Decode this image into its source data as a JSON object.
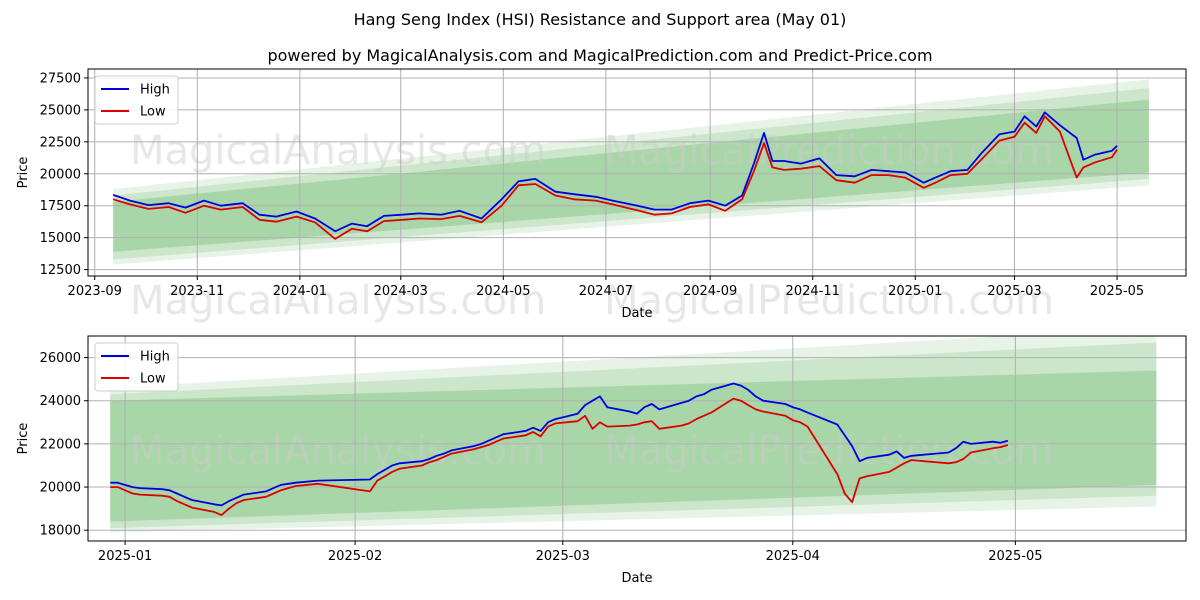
{
  "title": "Hang Seng Index (HSI) Resistance and Support area (May 01)",
  "subtitle": "powered by MagicalAnalysis.com and MagicalPrediction.com and Predict-Price.com",
  "watermarks": [
    "MagicalAnalysis.com",
    "MagicalPrediction.com"
  ],
  "colors": {
    "high": "#0000dd",
    "low": "#dd0000",
    "band": "#2e9e2e",
    "grid": "#b0b0b0"
  },
  "chart_data": [
    {
      "type": "line",
      "xlabel": "Date",
      "ylabel": "Price",
      "ylim": [
        12000,
        28200
      ],
      "xlim": [
        "2023-08-28",
        "2025-06-11"
      ],
      "yticks": [
        12500,
        15000,
        17500,
        20000,
        22500,
        25000,
        27500
      ],
      "ytick_labels": [
        "12500",
        "15000",
        "17500",
        "20000",
        "22500",
        "25000",
        "27500"
      ],
      "xticks": [
        "2023-09-01",
        "2023-11-01",
        "2024-01-01",
        "2024-03-01",
        "2024-05-01",
        "2024-07-01",
        "2024-09-01",
        "2024-11-01",
        "2025-01-01",
        "2025-03-01",
        "2025-05-01"
      ],
      "xtick_labels": [
        "2023-09",
        "2023-11",
        "2024-01",
        "2024-03",
        "2024-05",
        "2024-07",
        "2024-09",
        "2024-11",
        "2025-01",
        "2025-03",
        "2025-05"
      ],
      "grid": true,
      "legend": "upper-left",
      "bands": [
        {
          "x": [
            "2023-09-12",
            "2025-05-20"
          ],
          "upper": [
            18800,
            27400
          ],
          "lower": [
            12900,
            19100
          ]
        },
        {
          "x": [
            "2023-09-12",
            "2025-05-20"
          ],
          "upper": [
            18300,
            26700
          ],
          "lower": [
            13300,
            19600
          ]
        },
        {
          "x": [
            "2023-09-12",
            "2025-05-20"
          ],
          "upper": [
            17800,
            25800
          ],
          "lower": [
            13900,
            20100
          ]
        }
      ],
      "series": [
        {
          "name": "High",
          "x": [
            "2023-09-12",
            "2023-09-22",
            "2023-10-03",
            "2023-10-15",
            "2023-10-25",
            "2023-11-05",
            "2023-11-15",
            "2023-11-28",
            "2023-12-08",
            "2023-12-18",
            "2023-12-30",
            "2024-01-10",
            "2024-01-22",
            "2024-02-01",
            "2024-02-10",
            "2024-02-20",
            "2024-03-02",
            "2024-03-12",
            "2024-03-25",
            "2024-04-05",
            "2024-04-18",
            "2024-04-30",
            "2024-05-10",
            "2024-05-20",
            "2024-06-01",
            "2024-06-12",
            "2024-06-25",
            "2024-07-05",
            "2024-07-18",
            "2024-07-30",
            "2024-08-09",
            "2024-08-20",
            "2024-08-31",
            "2024-09-10",
            "2024-09-20",
            "2024-09-27",
            "2024-10-03",
            "2024-10-08",
            "2024-10-15",
            "2024-10-25",
            "2024-11-05",
            "2024-11-15",
            "2024-11-26",
            "2024-12-06",
            "2024-12-16",
            "2024-12-26",
            "2025-01-06",
            "2025-01-13",
            "2025-01-22",
            "2025-02-01",
            "2025-02-10",
            "2025-02-20",
            "2025-03-01",
            "2025-03-07",
            "2025-03-14",
            "2025-03-19",
            "2025-03-28",
            "2025-04-07",
            "2025-04-11",
            "2025-04-18",
            "2025-04-28",
            "2025-05-01"
          ],
          "values": [
            18350,
            17900,
            17550,
            17700,
            17350,
            17900,
            17500,
            17700,
            16800,
            16650,
            17050,
            16500,
            15500,
            16100,
            15900,
            16700,
            16800,
            16900,
            16800,
            17100,
            16500,
            18000,
            19400,
            19600,
            18600,
            18400,
            18200,
            17900,
            17550,
            17200,
            17200,
            17700,
            17900,
            17500,
            18300,
            20800,
            23200,
            21000,
            21000,
            20800,
            21200,
            19900,
            19800,
            20300,
            20200,
            20100,
            19300,
            19700,
            20200,
            20300,
            21700,
            23100,
            23300,
            24500,
            23700,
            24800,
            23800,
            22800,
            21100,
            21500,
            21800,
            22200
          ]
        },
        {
          "name": "Low",
          "x": [
            "2023-09-12",
            "2023-09-22",
            "2023-10-03",
            "2023-10-15",
            "2023-10-25",
            "2023-11-05",
            "2023-11-15",
            "2023-11-28",
            "2023-12-08",
            "2023-12-18",
            "2023-12-30",
            "2024-01-10",
            "2024-01-22",
            "2024-02-01",
            "2024-02-10",
            "2024-02-20",
            "2024-03-02",
            "2024-03-12",
            "2024-03-25",
            "2024-04-05",
            "2024-04-18",
            "2024-04-30",
            "2024-05-10",
            "2024-05-20",
            "2024-06-01",
            "2024-06-12",
            "2024-06-25",
            "2024-07-05",
            "2024-07-18",
            "2024-07-30",
            "2024-08-09",
            "2024-08-20",
            "2024-08-31",
            "2024-09-10",
            "2024-09-20",
            "2024-09-27",
            "2024-10-03",
            "2024-10-08",
            "2024-10-15",
            "2024-10-25",
            "2024-11-05",
            "2024-11-15",
            "2024-11-26",
            "2024-12-06",
            "2024-12-16",
            "2024-12-26",
            "2025-01-06",
            "2025-01-13",
            "2025-01-22",
            "2025-02-01",
            "2025-02-10",
            "2025-02-20",
            "2025-03-01",
            "2025-03-07",
            "2025-03-14",
            "2025-03-19",
            "2025-03-28",
            "2025-04-07",
            "2025-04-11",
            "2025-04-18",
            "2025-04-28",
            "2025-05-01"
          ],
          "values": [
            18000,
            17600,
            17250,
            17400,
            16950,
            17500,
            17200,
            17400,
            16400,
            16250,
            16650,
            16200,
            14900,
            15700,
            15500,
            16300,
            16400,
            16500,
            16450,
            16700,
            16200,
            17500,
            19100,
            19200,
            18300,
            18000,
            17900,
            17600,
            17200,
            16800,
            16900,
            17400,
            17600,
            17100,
            18000,
            20200,
            22400,
            20500,
            20300,
            20400,
            20600,
            19500,
            19300,
            19900,
            19900,
            19700,
            18900,
            19300,
            19900,
            20000,
            21200,
            22600,
            22900,
            24000,
            23200,
            24500,
            23300,
            19700,
            20500,
            20900,
            21300,
            21900
          ]
        }
      ]
    },
    {
      "type": "line",
      "xlabel": "Date",
      "ylabel": "Price",
      "ylim": [
        17500,
        27000
      ],
      "xlim": [
        "2024-12-27",
        "2025-05-24"
      ],
      "yticks": [
        18000,
        20000,
        22000,
        24000,
        26000
      ],
      "ytick_labels": [
        "18000",
        "20000",
        "22000",
        "24000",
        "26000"
      ],
      "xticks": [
        "2025-01-01",
        "2025-02-01",
        "2025-03-01",
        "2025-04-01",
        "2025-05-01"
      ],
      "xtick_labels": [
        "2025-01",
        "2025-02",
        "2025-03",
        "2025-04",
        "2025-05"
      ],
      "grid": true,
      "legend": "upper-left",
      "bands": [
        {
          "x": [
            "2024-12-30",
            "2025-05-20"
          ],
          "upper": [
            24600,
            27400
          ],
          "lower": [
            17900,
            19100
          ]
        },
        {
          "x": [
            "2024-12-30",
            "2025-05-20"
          ],
          "upper": [
            24300,
            26700
          ],
          "lower": [
            18100,
            19600
          ]
        },
        {
          "x": [
            "2024-12-30",
            "2025-05-20"
          ],
          "upper": [
            24000,
            25400
          ],
          "lower": [
            18400,
            20100
          ]
        }
      ],
      "series": [
        {
          "name": "High",
          "x": [
            "2024-12-30",
            "2024-12-31",
            "2025-01-02",
            "2025-01-03",
            "2025-01-06",
            "2025-01-07",
            "2025-01-08",
            "2025-01-09",
            "2025-01-10",
            "2025-01-13",
            "2025-01-14",
            "2025-01-15",
            "2025-01-16",
            "2025-01-17",
            "2025-01-20",
            "2025-01-21",
            "2025-01-22",
            "2025-01-23",
            "2025-01-24",
            "2025-01-27",
            "2025-02-03",
            "2025-02-04",
            "2025-02-05",
            "2025-02-06",
            "2025-02-07",
            "2025-02-10",
            "2025-02-11",
            "2025-02-12",
            "2025-02-13",
            "2025-02-14",
            "2025-02-17",
            "2025-02-18",
            "2025-02-19",
            "2025-02-20",
            "2025-02-21",
            "2025-02-24",
            "2025-02-25",
            "2025-02-26",
            "2025-02-27",
            "2025-02-28",
            "2025-03-03",
            "2025-03-04",
            "2025-03-05",
            "2025-03-06",
            "2025-03-07",
            "2025-03-10",
            "2025-03-11",
            "2025-03-12",
            "2025-03-13",
            "2025-03-14",
            "2025-03-17",
            "2025-03-18",
            "2025-03-19",
            "2025-03-20",
            "2025-03-21",
            "2025-03-24",
            "2025-03-25",
            "2025-03-26",
            "2025-03-27",
            "2025-03-28",
            "2025-03-31",
            "2025-04-01",
            "2025-04-02",
            "2025-04-03",
            "2025-04-07",
            "2025-04-08",
            "2025-04-09",
            "2025-04-10",
            "2025-04-11",
            "2025-04-14",
            "2025-04-15",
            "2025-04-16",
            "2025-04-17",
            "2025-04-22",
            "2025-04-23",
            "2025-04-24",
            "2025-04-25",
            "2025-04-28",
            "2025-04-29",
            "2025-04-30"
          ],
          "values": [
            20200,
            20200,
            20000,
            19950,
            19900,
            19850,
            19700,
            19550,
            19400,
            19200,
            19150,
            19350,
            19500,
            19650,
            19800,
            19950,
            20100,
            20150,
            20200,
            20300,
            20350,
            20600,
            20800,
            21000,
            21100,
            21200,
            21300,
            21450,
            21550,
            21700,
            21900,
            22000,
            22150,
            22300,
            22450,
            22600,
            22750,
            22600,
            23000,
            23150,
            23400,
            23800,
            24000,
            24200,
            23700,
            23500,
            23400,
            23700,
            23850,
            23600,
            23900,
            24000,
            24200,
            24300,
            24500,
            24800,
            24700,
            24500,
            24200,
            24000,
            23850,
            23700,
            23600,
            23450,
            22900,
            22400,
            21900,
            21200,
            21350,
            21500,
            21650,
            21350,
            21450,
            21600,
            21800,
            22100,
            22000,
            22100,
            22050,
            22150
          ]
        },
        {
          "name": "Low",
          "x": [
            "2024-12-30",
            "2024-12-31",
            "2025-01-02",
            "2025-01-03",
            "2025-01-06",
            "2025-01-07",
            "2025-01-08",
            "2025-01-09",
            "2025-01-10",
            "2025-01-13",
            "2025-01-14",
            "2025-01-15",
            "2025-01-16",
            "2025-01-17",
            "2025-01-20",
            "2025-01-21",
            "2025-01-22",
            "2025-01-23",
            "2025-01-24",
            "2025-01-27",
            "2025-02-03",
            "2025-02-04",
            "2025-02-05",
            "2025-02-06",
            "2025-02-07",
            "2025-02-10",
            "2025-02-11",
            "2025-02-12",
            "2025-02-13",
            "2025-02-14",
            "2025-02-17",
            "2025-02-18",
            "2025-02-19",
            "2025-02-20",
            "2025-02-21",
            "2025-02-24",
            "2025-02-25",
            "2025-02-26",
            "2025-02-27",
            "2025-02-28",
            "2025-03-03",
            "2025-03-04",
            "2025-03-05",
            "2025-03-06",
            "2025-03-07",
            "2025-03-10",
            "2025-03-11",
            "2025-03-12",
            "2025-03-13",
            "2025-03-14",
            "2025-03-17",
            "2025-03-18",
            "2025-03-19",
            "2025-03-20",
            "2025-03-21",
            "2025-03-24",
            "2025-03-25",
            "2025-03-26",
            "2025-03-27",
            "2025-03-28",
            "2025-03-31",
            "2025-04-01",
            "2025-04-02",
            "2025-04-03",
            "2025-04-07",
            "2025-04-08",
            "2025-04-09",
            "2025-04-10",
            "2025-04-11",
            "2025-04-14",
            "2025-04-15",
            "2025-04-16",
            "2025-04-17",
            "2025-04-22",
            "2025-04-23",
            "2025-04-24",
            "2025-04-25",
            "2025-04-28",
            "2025-04-29",
            "2025-04-30"
          ],
          "values": [
            20000,
            20000,
            19700,
            19650,
            19600,
            19550,
            19350,
            19200,
            19050,
            18850,
            18700,
            19000,
            19250,
            19400,
            19550,
            19700,
            19850,
            19950,
            20050,
            20150,
            19800,
            20300,
            20500,
            20700,
            20850,
            21000,
            21150,
            21250,
            21400,
            21550,
            21750,
            21850,
            21950,
            22100,
            22250,
            22400,
            22550,
            22350,
            22800,
            22950,
            23050,
            23300,
            22700,
            23000,
            22800,
            22850,
            22900,
            23000,
            23050,
            22700,
            22850,
            22950,
            23150,
            23300,
            23450,
            24100,
            24000,
            23800,
            23600,
            23500,
            23300,
            23100,
            23000,
            22800,
            20600,
            19700,
            19300,
            20400,
            20500,
            20700,
            20900,
            21100,
            21250,
            21100,
            21150,
            21300,
            21600,
            21800,
            21850,
            21950
          ]
        }
      ]
    }
  ]
}
